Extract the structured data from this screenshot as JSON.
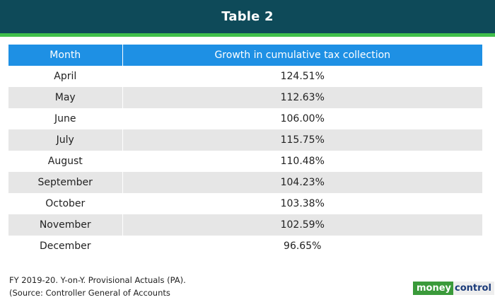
{
  "header": {
    "title": "Table 2"
  },
  "table": {
    "columns": [
      "Month",
      "Growth in cumulative tax collection"
    ],
    "rows": [
      [
        "April",
        "124.51%"
      ],
      [
        "May",
        "112.63%"
      ],
      [
        "June",
        "106.00%"
      ],
      [
        "July",
        "115.75%"
      ],
      [
        "August",
        "110.48%"
      ],
      [
        "September",
        "104.23%"
      ],
      [
        "October",
        "103.38%"
      ],
      [
        "November",
        "102.59%"
      ],
      [
        "December",
        "96.65%"
      ]
    ]
  },
  "footer": {
    "note1": "FY 2019-20. Y-on-Y. Provisional Actuals (PA).",
    "note2": "(Source: Controller General of Accounts",
    "logo_part1": "money",
    "logo_part2": "control"
  },
  "colors": {
    "header_bg": "#0e4a59",
    "accent_green": "#3fbf4a",
    "table_header_bg": "#1e90e4",
    "row_alt_bg": "#e6e6e6"
  }
}
